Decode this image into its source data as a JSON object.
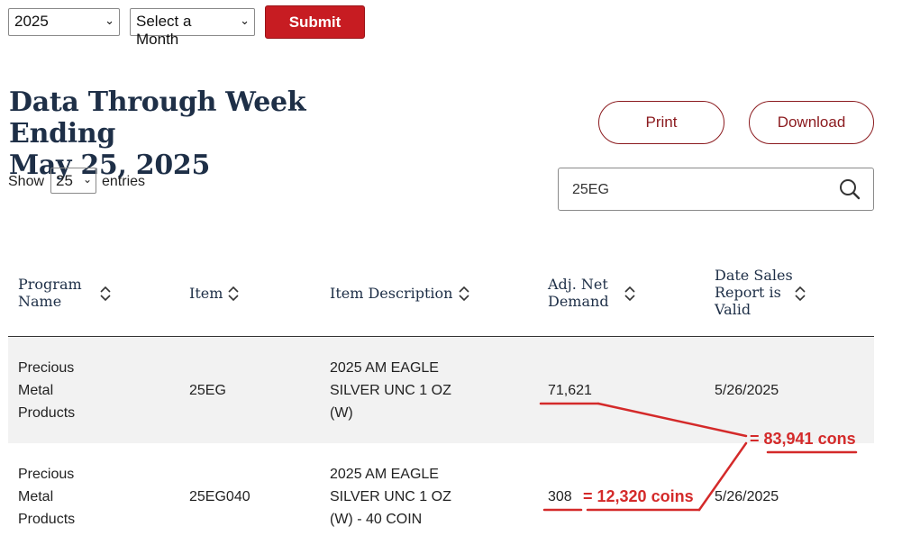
{
  "filters": {
    "year_value": "2025",
    "month_value": "Select a Month",
    "submit_label": "Submit"
  },
  "heading": {
    "line1": "Data Through Week Ending",
    "line2": "May 25, 2025"
  },
  "actions": {
    "print_label": "Print",
    "download_label": "Download"
  },
  "entries": {
    "show_label": "Show",
    "count_value": "25",
    "entries_label": "entries"
  },
  "search": {
    "value": "25EG"
  },
  "table": {
    "headers": [
      {
        "lines": [
          "Program",
          "Name"
        ]
      },
      {
        "lines": [
          "Item"
        ]
      },
      {
        "lines": [
          "Item Description"
        ]
      },
      {
        "lines": [
          "Adj. Net",
          "Demand"
        ]
      },
      {
        "lines": [
          "Date Sales",
          "Report is",
          "Valid"
        ]
      }
    ],
    "rows": [
      {
        "program": [
          "Precious",
          "Metal",
          "Products"
        ],
        "item": "25EG",
        "description": [
          "2025 AM EAGLE",
          "SILVER UNC 1 OZ",
          "(W)"
        ],
        "demand": "71,621",
        "date": "5/26/2025"
      },
      {
        "program": [
          "Precious",
          "Metal",
          "Products"
        ],
        "item": "25EG040",
        "description": [
          "2025 AM EAGLE",
          "SILVER UNC 1 OZ",
          "(W) - 40 COIN"
        ],
        "demand": "308",
        "date": "5/26/2025"
      }
    ]
  },
  "annotations": {
    "row2_note": "= 12,320 coins",
    "total_note": "= 83,941 cons",
    "color": "#d42a2a"
  }
}
